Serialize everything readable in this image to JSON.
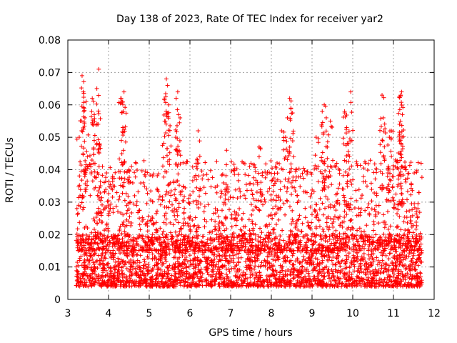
{
  "chart_data": {
    "type": "scatter",
    "title": "Day 138 of 2023, Rate Of TEC Index for receiver yar2",
    "xlabel": "GPS time / hours",
    "ylabel": "ROTI / TECUs",
    "xlim": [
      3,
      12
    ],
    "ylim": [
      0,
      0.08
    ],
    "xticks": [
      3,
      4,
      5,
      6,
      7,
      8,
      9,
      10,
      11,
      12
    ],
    "yticks": [
      0,
      0.01,
      0.02,
      0.03,
      0.04,
      0.05,
      0.06,
      0.07,
      0.08
    ],
    "xtick_labels": [
      "3",
      "4",
      "5",
      "6",
      "7",
      "8",
      "9",
      "10",
      "11",
      "12"
    ],
    "ytick_labels": [
      "0",
      "0.01",
      "0.02",
      "0.03",
      "0.04",
      "0.05",
      "0.06",
      "0.07",
      "0.08"
    ],
    "grid": true,
    "marker": "plus",
    "color": "#ff0000",
    "series": [
      {
        "name": "ROTI",
        "x_range": [
          3.2,
          11.7
        ],
        "baseline_range": [
          0.004,
          0.02
        ],
        "points": [
          [
            3.28,
            0.05
          ],
          [
            3.35,
            0.069
          ],
          [
            3.38,
            0.064
          ],
          [
            3.42,
            0.056
          ],
          [
            3.45,
            0.061
          ],
          [
            3.6,
            0.062
          ],
          [
            3.65,
            0.057
          ],
          [
            3.72,
            0.054
          ],
          [
            3.76,
            0.071
          ],
          [
            3.78,
            0.048
          ],
          [
            3.85,
            0.041
          ],
          [
            3.95,
            0.039
          ],
          [
            4.3,
            0.062
          ],
          [
            4.38,
            0.064
          ],
          [
            4.35,
            0.053
          ],
          [
            4.1,
            0.038
          ],
          [
            4.5,
            0.04
          ],
          [
            5.42,
            0.068
          ],
          [
            5.45,
            0.066
          ],
          [
            5.38,
            0.055
          ],
          [
            5.48,
            0.06
          ],
          [
            5.7,
            0.064
          ],
          [
            5.72,
            0.057
          ],
          [
            5.65,
            0.05
          ],
          [
            6.2,
            0.052
          ],
          [
            6.9,
            0.046
          ],
          [
            7.5,
            0.042
          ],
          [
            7.7,
            0.047
          ],
          [
            8.25,
            0.052
          ],
          [
            8.35,
            0.05
          ],
          [
            8.45,
            0.062
          ],
          [
            8.48,
            0.059
          ],
          [
            8.55,
            0.044
          ],
          [
            8.1,
            0.041
          ],
          [
            9.25,
            0.058
          ],
          [
            9.3,
            0.06
          ],
          [
            9.35,
            0.056
          ],
          [
            9.45,
            0.055
          ],
          [
            9.1,
            0.05
          ],
          [
            9.8,
            0.058
          ],
          [
            9.85,
            0.053
          ],
          [
            9.95,
            0.064
          ],
          [
            9.9,
            0.048
          ],
          [
            10.72,
            0.063
          ],
          [
            10.75,
            0.056
          ],
          [
            10.9,
            0.05
          ],
          [
            10.95,
            0.052
          ],
          [
            11.05,
            0.043
          ],
          [
            11.18,
            0.063
          ],
          [
            11.2,
            0.064
          ],
          [
            11.22,
            0.057
          ],
          [
            11.15,
            0.054
          ],
          [
            11.3,
            0.04
          ],
          [
            11.6,
            0.028
          ]
        ]
      }
    ]
  }
}
